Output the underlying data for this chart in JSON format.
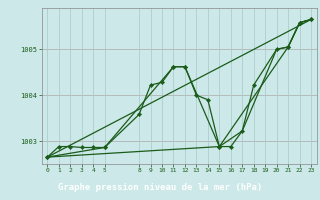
{
  "title": "Graphe pression niveau de la mer (hPa)",
  "bg_color": "#cce8e8",
  "label_bg_color": "#2d6b2d",
  "line_color": "#1a5c1a",
  "x_ticks": [
    0,
    1,
    2,
    3,
    4,
    5,
    8,
    9,
    10,
    11,
    12,
    13,
    14,
    15,
    16,
    17,
    18,
    19,
    20,
    21,
    22,
    23
  ],
  "yticks": [
    1003,
    1004,
    1005
  ],
  "ylim": [
    1002.5,
    1005.9
  ],
  "xlim": [
    -0.5,
    23.5
  ],
  "series1_x": [
    0,
    1,
    2,
    3,
    4,
    5,
    8,
    9,
    10,
    11,
    12,
    13,
    14,
    15,
    16,
    17,
    18,
    20,
    21,
    22,
    23
  ],
  "series1_y": [
    1002.65,
    1002.88,
    1002.88,
    1002.86,
    1002.86,
    1002.86,
    1003.58,
    1004.22,
    1004.28,
    1004.62,
    1004.62,
    1004.0,
    1003.9,
    1002.88,
    1002.88,
    1003.22,
    1004.22,
    1005.0,
    1005.05,
    1005.58,
    1005.65
  ],
  "series2_x": [
    0,
    5,
    11,
    12,
    15,
    21,
    22,
    23
  ],
  "series2_y": [
    1002.65,
    1002.86,
    1004.62,
    1004.62,
    1002.88,
    1005.05,
    1005.58,
    1005.65
  ],
  "series3_x": [
    0,
    23
  ],
  "series3_y": [
    1002.65,
    1005.65
  ],
  "series4_x": [
    0,
    15,
    17,
    20,
    21,
    22,
    23
  ],
  "series4_y": [
    1002.65,
    1002.88,
    1003.22,
    1005.0,
    1005.05,
    1005.58,
    1005.65
  ]
}
